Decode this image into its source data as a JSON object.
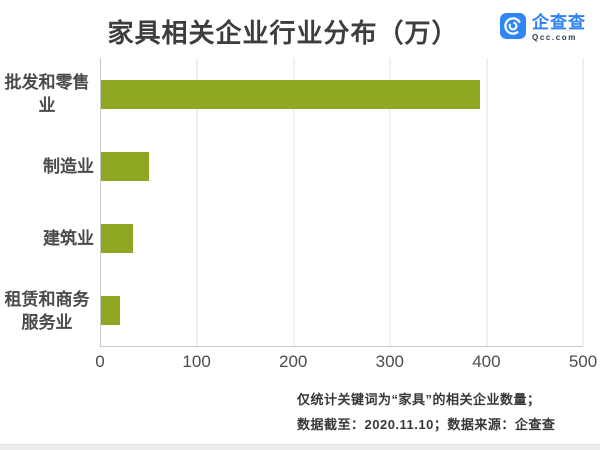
{
  "header": {
    "title": "家具相关企业行业分布（万）",
    "logo": {
      "brand": "企查查",
      "domain": "Qcc.com",
      "brand_color": "#2E82F2",
      "icon_color": "#2F86F6"
    }
  },
  "chart_data": {
    "type": "bar",
    "orientation": "horizontal",
    "title": "家具相关企业行业分布（万）",
    "unit": "万",
    "categories": [
      "批发和零售业",
      "制造业",
      "建筑业",
      "租赁和商务服务业"
    ],
    "values": [
      393,
      50,
      33,
      20
    ],
    "xlim": [
      0,
      500
    ],
    "xticks": [
      0,
      100,
      200,
      300,
      400,
      500
    ],
    "bar_color": "#8FA824",
    "grid": true,
    "legend": false,
    "gridline_color": "#e2e2e2"
  },
  "footnote": {
    "line1": "仅统计关键词为“家具”的相关企业数量；",
    "line2": "数据截至：2020.11.10；数据来源：企查查"
  }
}
